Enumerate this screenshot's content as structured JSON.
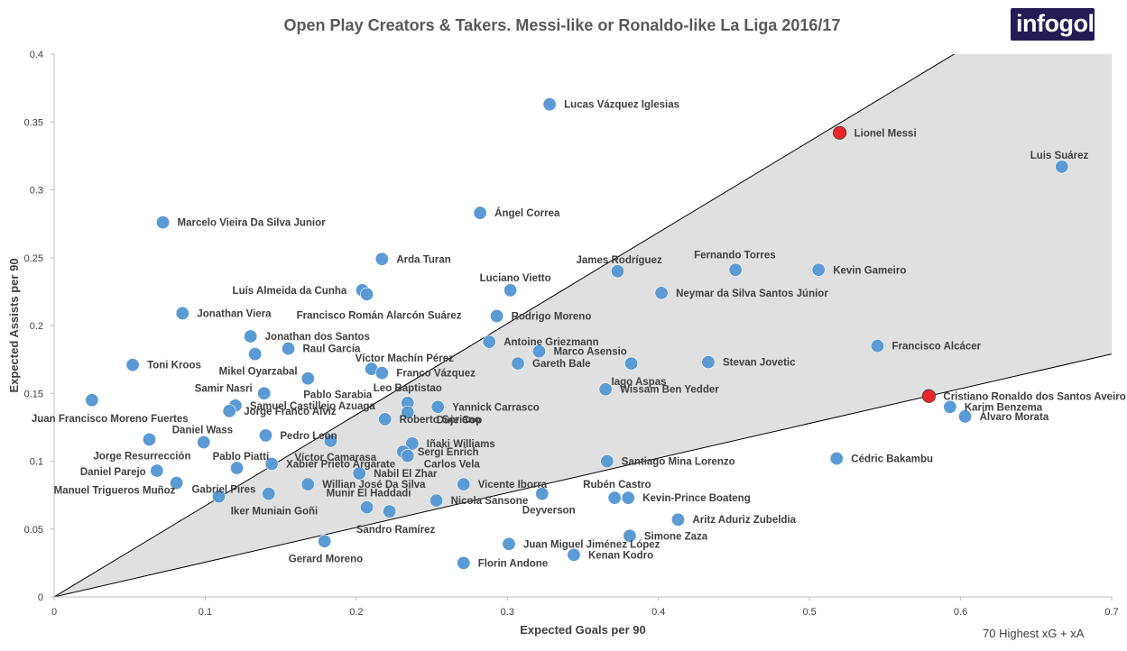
{
  "logo_text": "infogol",
  "footnote": "70 Highest xG + xA",
  "chart_data": {
    "type": "scatter",
    "title": "Open Play Creators & Takers. Messi-like or Ronaldo-like La Liga 2016/17",
    "xlabel": "Expected Goals per 90",
    "ylabel": "Expected Assists per 90",
    "xlim": [
      0,
      0.7
    ],
    "ylim": [
      0,
      0.4
    ],
    "xticks": [
      "0",
      "0.1",
      "0.2",
      "0.3",
      "0.4",
      "0.5",
      "0.6",
      "0.7"
    ],
    "yticks": [
      "0",
      "0.05",
      "0.1",
      "0.15",
      "0.2",
      "0.25",
      "0.3",
      "0.35",
      "0.4"
    ],
    "grid": false,
    "reference_lines": [
      {
        "x": [
          0,
          0.7
        ],
        "y": [
          0,
          0.47
        ]
      },
      {
        "x": [
          0,
          0.7
        ],
        "y": [
          0,
          0.179
        ]
      }
    ],
    "colors": {
      "default": "#5b9bd5",
      "highlight": "#e8262a",
      "shade": "#e0e0e0"
    },
    "points": [
      {
        "name": "Lucas Vázquez Iglesias",
        "x": 0.328,
        "y": 0.363,
        "lx": 1,
        "ly": 1
      },
      {
        "name": "Lionel Messi",
        "x": 0.52,
        "y": 0.342,
        "lx": 1,
        "ly": 1,
        "highlight": true
      },
      {
        "name": "Luis Suárez",
        "x": 0.667,
        "y": 0.317,
        "lx": -35,
        "ly": -13
      },
      {
        "name": "Ángel Correa",
        "x": 0.282,
        "y": 0.283,
        "lx": 1,
        "ly": 1
      },
      {
        "name": "Marcelo Vieira Da Silva Junior",
        "x": 0.072,
        "y": 0.276,
        "lx": 1,
        "ly": 1
      },
      {
        "name": "Arda Turan",
        "x": 0.217,
        "y": 0.249,
        "lx": 1,
        "ly": 1
      },
      {
        "name": "James Rodríguez",
        "x": 0.373,
        "y": 0.24,
        "lx": -46,
        "ly": -13
      },
      {
        "name": "Fernando Torres",
        "x": 0.451,
        "y": 0.241,
        "lx": -46,
        "ly": -17
      },
      {
        "name": "Kevin Gameiro",
        "x": 0.506,
        "y": 0.241,
        "lx": 1,
        "ly": 1
      },
      {
        "name": "Luís Almeida da Cunha",
        "x": 0.204,
        "y": 0.226,
        "lx": -144,
        "ly": 0
      },
      {
        "name": "Francisco Román Alarcón Suárez",
        "x": 0.207,
        "y": 0.223,
        "lx": -78,
        "ly": 23
      },
      {
        "name": "Luciano Vietto",
        "x": 0.302,
        "y": 0.226,
        "lx": -34,
        "ly": -14
      },
      {
        "name": "Neymar da Silva Santos Júnior",
        "x": 0.402,
        "y": 0.224,
        "lx": 1,
        "ly": 1
      },
      {
        "name": "Jonathan Viera",
        "x": 0.085,
        "y": 0.209,
        "lx": 1,
        "ly": 1
      },
      {
        "name": "Rodrigo Moreno",
        "x": 0.293,
        "y": 0.207,
        "lx": 1,
        "ly": 1
      },
      {
        "name": "Jonathan dos Santos",
        "x": 0.13,
        "y": 0.192,
        "lx": 1,
        "ly": 1
      },
      {
        "name": "Antoine Griezmann",
        "x": 0.288,
        "y": 0.188,
        "lx": 1,
        "ly": 1
      },
      {
        "name": "Raul García",
        "x": 0.155,
        "y": 0.183,
        "lx": 1,
        "ly": 1
      },
      {
        "name": "Francisco Alcácer",
        "x": 0.545,
        "y": 0.185,
        "lx": 1,
        "ly": 1
      },
      {
        "name": "Marco Asensio",
        "x": 0.321,
        "y": 0.181,
        "lx": 1,
        "ly": 1
      },
      {
        "name": "Mikel Oyarzabal",
        "x": 0.133,
        "y": 0.179,
        "lx": -40,
        "ly": 19
      },
      {
        "name": "Víctor Machín Pérez",
        "x": 0.21,
        "y": 0.168,
        "lx": -18,
        "ly": -12
      },
      {
        "name": "Stevan Jovetic",
        "x": 0.433,
        "y": 0.173,
        "lx": 1,
        "ly": 1
      },
      {
        "name": "Gareth Bale",
        "x": 0.307,
        "y": 0.172,
        "lx": 1,
        "ly": 1
      },
      {
        "name": "Iago Aspas",
        "x": 0.382,
        "y": 0.172,
        "lx": -22,
        "ly": 20
      },
      {
        "name": "Toni Kroos",
        "x": 0.052,
        "y": 0.171,
        "lx": 1,
        "ly": 1
      },
      {
        "name": "Franco Vázquez",
        "x": 0.217,
        "y": 0.165,
        "lx": 1,
        "ly": 1
      },
      {
        "name": "Pablo Sarabia",
        "x": 0.168,
        "y": 0.161,
        "lx": -5,
        "ly": 18
      },
      {
        "name": "Wissam Ben Yedder",
        "x": 0.365,
        "y": 0.153,
        "lx": 1,
        "ly": 1
      },
      {
        "name": "Samir Nasri",
        "x": 0.139,
        "y": 0.15,
        "lx": -77,
        "ly": -6
      },
      {
        "name": "Leo Baptistao",
        "x": 0.234,
        "y": 0.143,
        "lx": -38,
        "ly": -17
      },
      {
        "name": "Samuel Castillejo Azuaga",
        "x": 0.12,
        "y": 0.141,
        "lx": 1,
        "ly": 1
      },
      {
        "name": "Yannick Carrasco",
        "x": 0.254,
        "y": 0.14,
        "lx": 1,
        "ly": 1
      },
      {
        "name": "Cristiano Ronaldo dos Santos Aveiro",
        "x": 0.579,
        "y": 0.148,
        "lx": 1,
        "ly": 1,
        "highlight": true
      },
      {
        "name": "Juan Francisco Moreno Fuertes",
        "x": 0.025,
        "y": 0.145,
        "lx": -67,
        "ly": 20
      },
      {
        "name": "Karim Benzema",
        "x": 0.593,
        "y": 0.14,
        "lx": 1,
        "ly": 1
      },
      {
        "name": "Jorge Franco Alvíz",
        "x": 0.116,
        "y": 0.137,
        "lx": 1,
        "ly": 1
      },
      {
        "name": "Duje Cop",
        "x": 0.234,
        "y": 0.136,
        "lx": 32,
        "ly": 8
      },
      {
        "name": "Álvaro Morata",
        "x": 0.603,
        "y": 0.133,
        "lx": 1,
        "ly": 1
      },
      {
        "name": "Roberto Soriano",
        "x": 0.219,
        "y": 0.131,
        "lx": 1,
        "ly": 1
      },
      {
        "name": "Pedro León",
        "x": 0.14,
        "y": 0.119,
        "lx": 1,
        "ly": 1
      },
      {
        "name": "Daniel Wass",
        "x": 0.099,
        "y": 0.114,
        "lx": -35,
        "ly": -14
      },
      {
        "name": "Iñaki Williams",
        "x": 0.237,
        "y": 0.113,
        "lx": 1,
        "ly": 1
      },
      {
        "name": "Jorge Resurrección",
        "x": 0.063,
        "y": 0.116,
        "lx": -62,
        "ly": 18
      },
      {
        "name": "Víctor Camarasa",
        "x": 0.183,
        "y": 0.115,
        "lx": -40,
        "ly": 18
      },
      {
        "name": "Sergi Enrich",
        "x": 0.231,
        "y": 0.107,
        "lx": 16,
        "ly": 0
      },
      {
        "name": "Pablo Piatti",
        "x": 0.121,
        "y": 0.095,
        "lx": -27,
        "ly": -13
      },
      {
        "name": "Xabier Prieto Argarate",
        "x": 0.144,
        "y": 0.098,
        "lx": 1,
        "ly": 1
      },
      {
        "name": "Carlos Vela",
        "x": 0.234,
        "y": 0.104,
        "lx": 18,
        "ly": 9
      },
      {
        "name": "Santiago Mina Lorenzo",
        "x": 0.366,
        "y": 0.1,
        "lx": 1,
        "ly": 1
      },
      {
        "name": "Cédric Bakambu",
        "x": 0.518,
        "y": 0.102,
        "lx": 1,
        "ly": 1
      },
      {
        "name": "Daniel Parejo",
        "x": 0.068,
        "y": 0.093,
        "lx": -85,
        "ly": 1
      },
      {
        "name": "Nabil El Zhar",
        "x": 0.202,
        "y": 0.091,
        "lx": 1,
        "ly": 1
      },
      {
        "name": "Manuel Trigueros Muñoz",
        "x": 0.081,
        "y": 0.084,
        "lx": -136,
        "ly": 8
      },
      {
        "name": "Gabriel Pires",
        "x": 0.109,
        "y": 0.074,
        "lx": -30,
        "ly": -8
      },
      {
        "name": "Willian José Da Silva",
        "x": 0.168,
        "y": 0.083,
        "lx": 1,
        "ly": 1
      },
      {
        "name": "Vicente Iborra",
        "x": 0.271,
        "y": 0.083,
        "lx": 1,
        "ly": 1
      },
      {
        "name": "Rubén Castro",
        "x": 0.371,
        "y": 0.073,
        "lx": -35,
        "ly": -15
      },
      {
        "name": "Munir El Haddadi",
        "x": 0.207,
        "y": 0.066,
        "lx": -45,
        "ly": -16
      },
      {
        "name": "Nicola Sansone",
        "x": 0.253,
        "y": 0.071,
        "lx": 1,
        "ly": 1
      },
      {
        "name": "Deyverson",
        "x": 0.323,
        "y": 0.076,
        "lx": -22,
        "ly": 18
      },
      {
        "name": "Kevin-Prince Boateng",
        "x": 0.38,
        "y": 0.073,
        "lx": 1,
        "ly": 1
      },
      {
        "name": "Iker Muniain Goñi",
        "x": 0.142,
        "y": 0.076,
        "lx": -42,
        "ly": 19
      },
      {
        "name": "Aritz Aduriz Zubeldia",
        "x": 0.413,
        "y": 0.057,
        "lx": 1,
        "ly": 1
      },
      {
        "name": "Sandro Ramírez",
        "x": 0.222,
        "y": 0.063,
        "lx": -37,
        "ly": 20
      },
      {
        "name": "Simone Zaza",
        "x": 0.381,
        "y": 0.045,
        "lx": 1,
        "ly": 1
      },
      {
        "name": "Gerard Moreno",
        "x": 0.179,
        "y": 0.041,
        "lx": -40,
        "ly": 19
      },
      {
        "name": "Juan Miguel Jiménez López",
        "x": 0.301,
        "y": 0.039,
        "lx": 1,
        "ly": 1
      },
      {
        "name": "Kenan Kodro",
        "x": 0.344,
        "y": 0.031,
        "lx": 1,
        "ly": 1
      },
      {
        "name": "Florin Andone",
        "x": 0.271,
        "y": 0.025,
        "lx": 1,
        "ly": 1
      }
    ]
  }
}
